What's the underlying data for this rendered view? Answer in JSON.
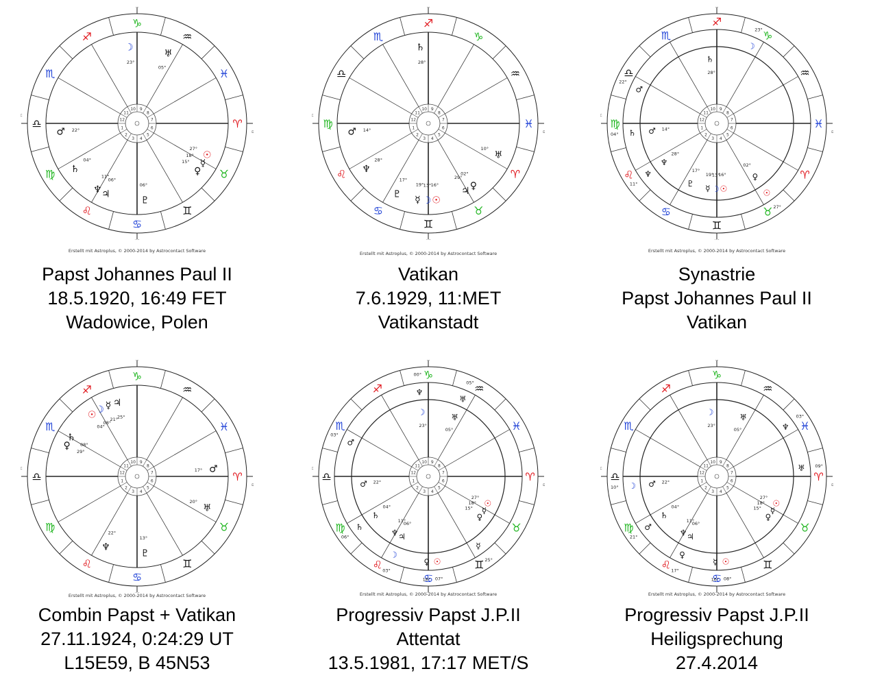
{
  "credit": "Erstellt mit Astroplus, © 2000-2014 by Astrocontact Software",
  "angle_labels": {
    "mc": "MC",
    "ac": "AC",
    "ic": "IC",
    "dc": "DC"
  },
  "colors": {
    "fire": "#e0151b",
    "earth": "#1fb51f",
    "air": "#111111",
    "water": "#1c3fd6",
    "sun": "#e0151b",
    "moon": "#1c3fd6"
  },
  "sign_glyphs": [
    "♈",
    "♉",
    "♊",
    "♋",
    "♌",
    "♍",
    "♎",
    "♏",
    "♐",
    "♑",
    "♒",
    "♓"
  ],
  "charts": [
    {
      "id": "pope",
      "title_lines": [
        "Papst Johannes Paul II",
        "18.5.1920, 16:49 FET",
        "Wadowice, Polen"
      ],
      "asc_sign": 6,
      "kind": "single",
      "planets": [
        {
          "glyph": "☉",
          "name": "sun",
          "deg": "27°",
          "sign": 1
        },
        {
          "glyph": "☽",
          "name": "moon",
          "deg": "23°",
          "sign": 9
        },
        {
          "glyph": "☿",
          "name": "mercury",
          "deg": "18°",
          "sign": 1
        },
        {
          "glyph": "♀",
          "name": "venus",
          "deg": "15°",
          "sign": 1
        },
        {
          "glyph": "♂",
          "name": "mars",
          "deg": "22°",
          "sign": 6
        },
        {
          "glyph": "♃",
          "name": "jupiter",
          "deg": "06°",
          "sign": 4
        },
        {
          "glyph": "♄",
          "name": "saturn",
          "deg": "04°",
          "sign": 5
        },
        {
          "glyph": "♅",
          "name": "uranus",
          "deg": "05°",
          "sign": 10
        },
        {
          "glyph": "♆",
          "name": "neptune",
          "deg": "11°",
          "sign": 4
        },
        {
          "glyph": "♇",
          "name": "pluto",
          "deg": "06°",
          "sign": 3
        }
      ]
    },
    {
      "id": "vatican",
      "title_lines": [
        "Vatikan",
        "7.6.1929, 11:MET",
        "Vatikanstadt"
      ],
      "asc_sign": 5,
      "kind": "single",
      "planets": [
        {
          "glyph": "☉",
          "name": "sun",
          "deg": "16°",
          "sign": 2
        },
        {
          "glyph": "☽",
          "name": "moon",
          "deg": "13°",
          "sign": 2
        },
        {
          "glyph": "☿",
          "name": "mercury",
          "deg": "19°",
          "sign": 2
        },
        {
          "glyph": "♀",
          "name": "venus",
          "deg": "02°",
          "sign": 1
        },
        {
          "glyph": "♂",
          "name": "mars",
          "deg": "14°",
          "sign": 5
        },
        {
          "glyph": "♃",
          "name": "jupiter",
          "deg": "29°",
          "sign": 1
        },
        {
          "glyph": "♄",
          "name": "saturn",
          "deg": "28°",
          "sign": 8
        },
        {
          "glyph": "♅",
          "name": "uranus",
          "deg": "10°",
          "sign": 0
        },
        {
          "glyph": "♆",
          "name": "neptune",
          "deg": "28°",
          "sign": 4
        },
        {
          "glyph": "♇",
          "name": "pluto",
          "deg": "17°",
          "sign": 3
        }
      ]
    },
    {
      "id": "synastry",
      "title_lines": [
        "Synastrie",
        "Papst Johannes Paul II",
        "Vatikan"
      ],
      "asc_sign": 5,
      "kind": "double",
      "planets": [
        {
          "glyph": "☉",
          "name": "sun",
          "deg": "16°",
          "sign": 2
        },
        {
          "glyph": "☽",
          "name": "moon",
          "deg": "13°",
          "sign": 2
        },
        {
          "glyph": "☿",
          "name": "mercury",
          "deg": "19°",
          "sign": 2
        },
        {
          "glyph": "♀",
          "name": "venus",
          "deg": "02°",
          "sign": 1
        },
        {
          "glyph": "♂",
          "name": "mars",
          "deg": "14°",
          "sign": 5
        },
        {
          "glyph": "♄",
          "name": "saturn",
          "deg": "28°",
          "sign": 8
        },
        {
          "glyph": "♆",
          "name": "neptune",
          "deg": "28°",
          "sign": 4
        },
        {
          "glyph": "♇",
          "name": "pluto",
          "deg": "17°",
          "sign": 3
        }
      ],
      "outer_planets": [
        {
          "glyph": "☉",
          "name": "sun",
          "deg": "27°",
          "sign": 1
        },
        {
          "glyph": "☽",
          "name": "moon",
          "deg": "23°",
          "sign": 9
        },
        {
          "glyph": "♂",
          "name": "mars",
          "deg": "22°",
          "sign": 6
        },
        {
          "glyph": "♄",
          "name": "saturn",
          "deg": "04°",
          "sign": 5
        },
        {
          "glyph": "♆",
          "name": "neptune",
          "deg": "11°",
          "sign": 4
        }
      ]
    },
    {
      "id": "composite",
      "title_lines": [
        "Combin Papst + Vatikan",
        "27.11.1924, 0:24:29 UT",
        "L15E59, B 45N53"
      ],
      "asc_sign": 6,
      "kind": "single",
      "planets": [
        {
          "glyph": "☉",
          "name": "sun",
          "deg": "04°",
          "sign": 8
        },
        {
          "glyph": "☽",
          "name": "moon",
          "deg": "08°",
          "sign": 8
        },
        {
          "glyph": "☿",
          "name": "mercury",
          "deg": "21°",
          "sign": 8
        },
        {
          "glyph": "♀",
          "name": "venus",
          "deg": "29°",
          "sign": 7
        },
        {
          "glyph": "♂",
          "name": "mars",
          "deg": "17°",
          "sign": 0
        },
        {
          "glyph": "♃",
          "name": "jupiter",
          "deg": "25°",
          "sign": 8
        },
        {
          "glyph": "♄",
          "name": "saturn",
          "deg": "08°",
          "sign": 7
        },
        {
          "glyph": "♅",
          "name": "uranus",
          "deg": "20°",
          "sign": 1
        },
        {
          "glyph": "♆",
          "name": "neptune",
          "deg": "22°",
          "sign": 4
        },
        {
          "glyph": "♇",
          "name": "pluto",
          "deg": "13°",
          "sign": 3
        }
      ]
    },
    {
      "id": "prog-attentat",
      "title_lines": [
        "Progressiv Papst J.P.II",
        "Attentat",
        "13.5.1981, 17:17 MET/S"
      ],
      "asc_sign": 6,
      "kind": "double",
      "planets": [
        {
          "glyph": "☉",
          "name": "sun",
          "deg": "27°",
          "sign": 1
        },
        {
          "glyph": "☽",
          "name": "moon",
          "deg": "23°",
          "sign": 9
        },
        {
          "glyph": "☿",
          "name": "mercury",
          "deg": "18°",
          "sign": 1
        },
        {
          "glyph": "♀",
          "name": "venus",
          "deg": "15°",
          "sign": 1
        },
        {
          "glyph": "♂",
          "name": "mars",
          "deg": "22°",
          "sign": 6
        },
        {
          "glyph": "♃",
          "name": "jupiter",
          "deg": "06°",
          "sign": 4
        },
        {
          "glyph": "♄",
          "name": "saturn",
          "deg": "04°",
          "sign": 5
        },
        {
          "glyph": "♅",
          "name": "uranus",
          "deg": "05°",
          "sign": 10
        },
        {
          "glyph": "♆",
          "name": "neptune",
          "deg": "11°",
          "sign": 4
        }
      ],
      "outer_planets": [
        {
          "glyph": "☉",
          "name": "sun",
          "deg": "07°",
          "sign": 3
        },
        {
          "glyph": "☽",
          "name": "moon",
          "deg": "03°",
          "sign": 4
        },
        {
          "glyph": "☿",
          "name": "mercury",
          "deg": "25°",
          "sign": 2
        },
        {
          "glyph": "♀",
          "name": "venus",
          "deg": "18°",
          "sign": 3
        },
        {
          "glyph": "♂",
          "name": "mars",
          "deg": "03°",
          "sign": 7
        },
        {
          "glyph": "♄",
          "name": "saturn",
          "deg": "06°",
          "sign": 5
        },
        {
          "glyph": "♅",
          "name": "uranus",
          "deg": "05°",
          "sign": 10
        },
        {
          "glyph": "♆",
          "name": "neptune",
          "deg": "00°",
          "sign": 9
        }
      ]
    },
    {
      "id": "prog-heilig",
      "title_lines": [
        "Progressiv Papst J.P.II",
        "Heiligsprechung",
        "27.4.2014"
      ],
      "asc_sign": 6,
      "kind": "double",
      "planets": [
        {
          "glyph": "☉",
          "name": "sun",
          "deg": "27°",
          "sign": 1
        },
        {
          "glyph": "☽",
          "name": "moon",
          "deg": "23°",
          "sign": 9
        },
        {
          "glyph": "☿",
          "name": "mercury",
          "deg": "18°",
          "sign": 1
        },
        {
          "glyph": "♀",
          "name": "venus",
          "deg": "15°",
          "sign": 1
        },
        {
          "glyph": "♂",
          "name": "mars",
          "deg": "22°",
          "sign": 6
        },
        {
          "glyph": "♃",
          "name": "jupiter",
          "deg": "06°",
          "sign": 4
        },
        {
          "glyph": "♄",
          "name": "saturn",
          "deg": "04°",
          "sign": 5
        },
        {
          "glyph": "♅",
          "name": "uranus",
          "deg": "05°",
          "sign": 10
        },
        {
          "glyph": "♆",
          "name": "neptune",
          "deg": "11°",
          "sign": 4
        }
      ],
      "outer_planets": [
        {
          "glyph": "☉",
          "name": "sun",
          "deg": "08°",
          "sign": 3
        },
        {
          "glyph": "☽",
          "name": "moon",
          "deg": "10°",
          "sign": 6
        },
        {
          "glyph": "☿",
          "name": "mercury",
          "deg": "16°",
          "sign": 3
        },
        {
          "glyph": "♀",
          "name": "venus",
          "deg": "17°",
          "sign": 4
        },
        {
          "glyph": "♂",
          "name": "mars",
          "deg": "21°",
          "sign": 5
        },
        {
          "glyph": "♅",
          "name": "uranus",
          "deg": "09°",
          "sign": 0
        },
        {
          "glyph": "♆",
          "name": "neptune",
          "deg": "03°",
          "sign": 11
        }
      ]
    }
  ]
}
